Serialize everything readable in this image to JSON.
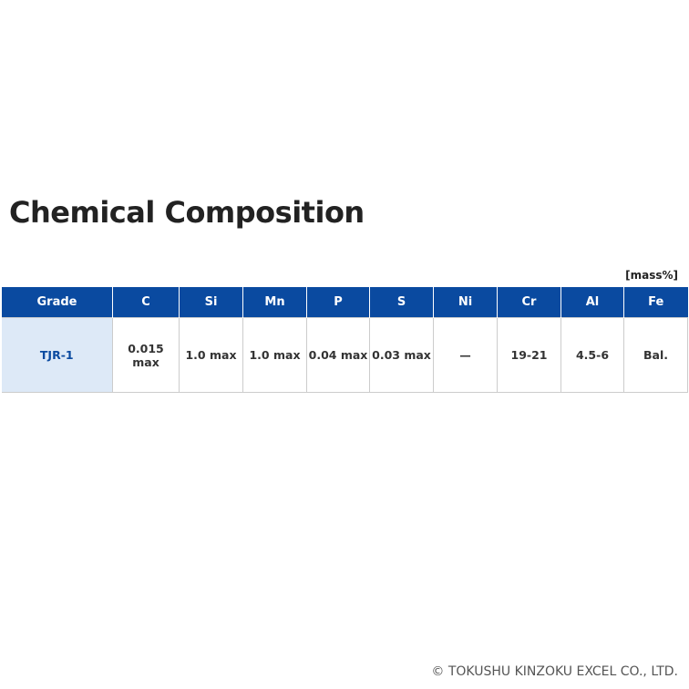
{
  "title": "Chemical Composition",
  "unit": "[mass%]",
  "table": {
    "header": [
      "Grade",
      "C",
      "Si",
      "Mn",
      "P",
      "S",
      "Ni",
      "Cr",
      "Al",
      "Fe"
    ],
    "rows": [
      [
        "TJR-1",
        "0.015 max",
        "1.0 max",
        "1.0 max",
        "0.04 max",
        "0.03 max",
        "—",
        "19-21",
        "4.5-6",
        "Bal."
      ]
    ]
  },
  "footer": "© TOKUSHU KINZOKU EXCEL CO., LTD."
}
